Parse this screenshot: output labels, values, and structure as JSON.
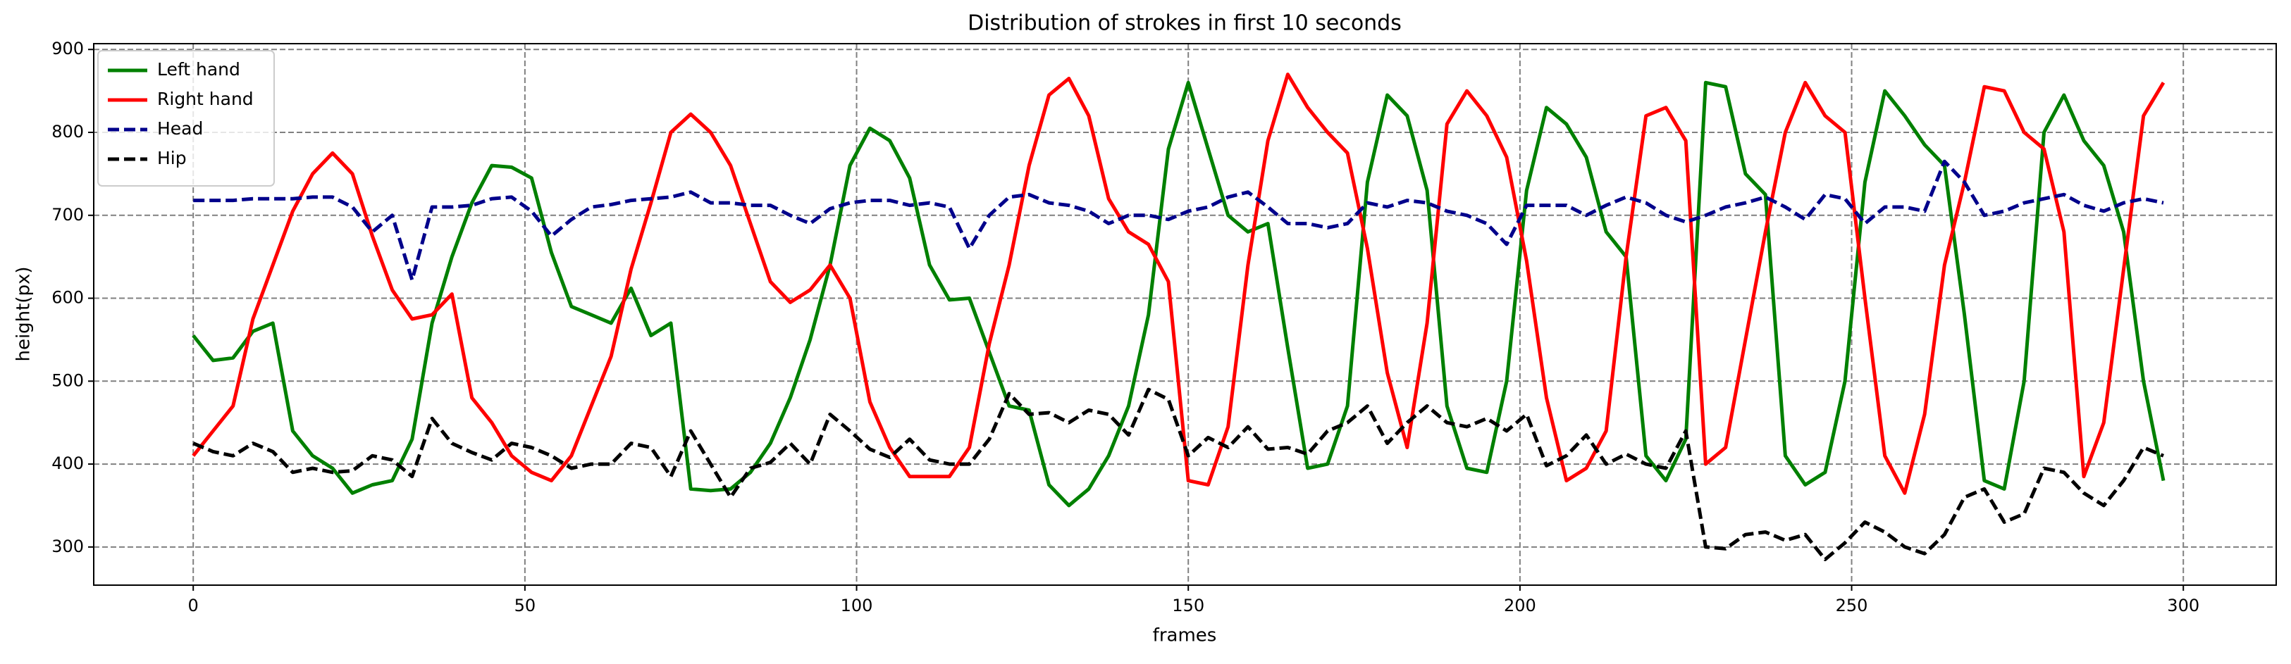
{
  "chart_data": {
    "type": "line",
    "title": "Distribution of strokes in first 10 seconds",
    "x_label": "frames",
    "y_label": "height(px)",
    "xlim": [
      -15,
      314
    ],
    "ylim": [
      254,
      907
    ],
    "xticks": [
      0,
      50,
      100,
      150,
      200,
      250,
      300
    ],
    "yticks": [
      300,
      400,
      500,
      600,
      700,
      800,
      900
    ],
    "grid": true,
    "legend": "upper left",
    "x": [
      0,
      3,
      6,
      9,
      12,
      15,
      18,
      21,
      24,
      27,
      30,
      33,
      36,
      39,
      42,
      45,
      48,
      51,
      54,
      57,
      60,
      63,
      66,
      69,
      72,
      75,
      78,
      81,
      84,
      87,
      90,
      93,
      96,
      99,
      102,
      105,
      108,
      111,
      114,
      117,
      120,
      123,
      126,
      129,
      132,
      135,
      138,
      141,
      144,
      147,
      150,
      153,
      156,
      159,
      162,
      165,
      168,
      171,
      174,
      177,
      180,
      183,
      186,
      189,
      192,
      195,
      198,
      201,
      204,
      207,
      210,
      213,
      216,
      219,
      222,
      225,
      228,
      231,
      234,
      237,
      240,
      243,
      246,
      249,
      252,
      255,
      258,
      261,
      264,
      267,
      270,
      273,
      276,
      279,
      282,
      285,
      288,
      291,
      294,
      297
    ],
    "series": [
      {
        "name": "Left hand",
        "color": "#008000",
        "dash": "solid",
        "values": [
          555,
          525,
          528,
          560,
          570,
          440,
          410,
          395,
          365,
          375,
          380,
          430,
          570,
          650,
          715,
          760,
          758,
          745,
          655,
          590,
          580,
          570,
          612,
          555,
          570,
          370,
          368,
          370,
          390,
          425,
          480,
          550,
          640,
          760,
          805,
          790,
          745,
          640,
          598,
          600,
          535,
          470,
          465,
          375,
          350,
          370,
          410,
          470,
          580,
          780,
          860,
          780,
          700,
          680,
          690,
          540,
          395,
          400,
          470,
          740,
          845,
          820,
          730,
          470,
          395,
          390,
          500,
          730,
          830,
          810,
          770,
          680,
          650,
          410,
          380,
          430,
          860,
          855,
          750,
          725,
          410,
          375,
          390,
          500,
          740,
          850,
          820,
          785,
          760,
          580,
          380,
          370,
          500,
          800,
          845,
          790,
          760,
          680,
          500,
          380
        ]
      },
      {
        "name": "Right hand",
        "color": "#ff0000",
        "dash": "solid",
        "values": [
          410,
          440,
          470,
          575,
          640,
          705,
          750,
          775,
          750,
          675,
          610,
          575,
          580,
          605,
          480,
          450,
          410,
          390,
          380,
          410,
          470,
          530,
          635,
          715,
          800,
          822,
          800,
          760,
          690,
          620,
          595,
          610,
          640,
          600,
          475,
          420,
          385,
          385,
          385,
          420,
          545,
          640,
          760,
          845,
          865,
          820,
          720,
          680,
          665,
          620,
          380,
          375,
          445,
          640,
          790,
          870,
          830,
          800,
          775,
          660,
          510,
          420,
          570,
          810,
          850,
          820,
          770,
          645,
          480,
          380,
          395,
          440,
          650,
          820,
          830,
          790,
          400,
          420,
          550,
          680,
          800,
          860,
          820,
          800,
          600,
          410,
          365,
          460,
          640,
          740,
          855,
          850,
          800,
          780,
          680,
          385,
          450,
          635,
          820,
          860
        ]
      },
      {
        "name": "Head",
        "color": "#00008b",
        "dash": "dashed",
        "values": [
          718,
          718,
          718,
          720,
          720,
          720,
          722,
          722,
          710,
          680,
          700,
          622,
          710,
          710,
          712,
          720,
          722,
          705,
          675,
          695,
          710,
          713,
          718,
          720,
          722,
          728,
          715,
          715,
          712,
          712,
          700,
          690,
          708,
          715,
          718,
          718,
          712,
          715,
          710,
          660,
          700,
          722,
          725,
          715,
          712,
          705,
          690,
          700,
          700,
          695,
          705,
          710,
          722,
          728,
          710,
          690,
          690,
          685,
          690,
          715,
          710,
          718,
          715,
          705,
          700,
          690,
          665,
          712,
          712,
          712,
          700,
          712,
          722,
          715,
          700,
          692,
          700,
          710,
          715,
          722,
          710,
          695,
          725,
          720,
          690,
          710,
          710,
          705,
          765,
          740,
          700,
          705,
          715,
          720,
          725,
          712,
          705,
          715,
          720,
          715
        ]
      },
      {
        "name": "Hip",
        "color": "#000000",
        "dash": "dashed",
        "values": [
          425,
          415,
          410,
          425,
          415,
          390,
          395,
          390,
          392,
          410,
          405,
          385,
          455,
          425,
          414,
          405,
          425,
          420,
          410,
          395,
          400,
          400,
          425,
          420,
          385,
          440,
          400,
          360,
          395,
          402,
          425,
          400,
          460,
          440,
          418,
          408,
          430,
          405,
          400,
          400,
          430,
          485,
          460,
          462,
          450,
          465,
          460,
          435,
          490,
          478,
          410,
          432,
          420,
          445,
          418,
          420,
          412,
          440,
          450,
          470,
          425,
          450,
          470,
          450,
          445,
          455,
          440,
          460,
          398,
          410,
          435,
          400,
          412,
          400,
          395,
          440,
          300,
          298,
          315,
          318,
          308,
          315,
          285,
          305,
          330,
          318,
          300,
          292,
          315,
          360,
          370,
          330,
          340,
          395,
          390,
          365,
          350,
          380,
          420,
          410
        ]
      }
    ]
  }
}
